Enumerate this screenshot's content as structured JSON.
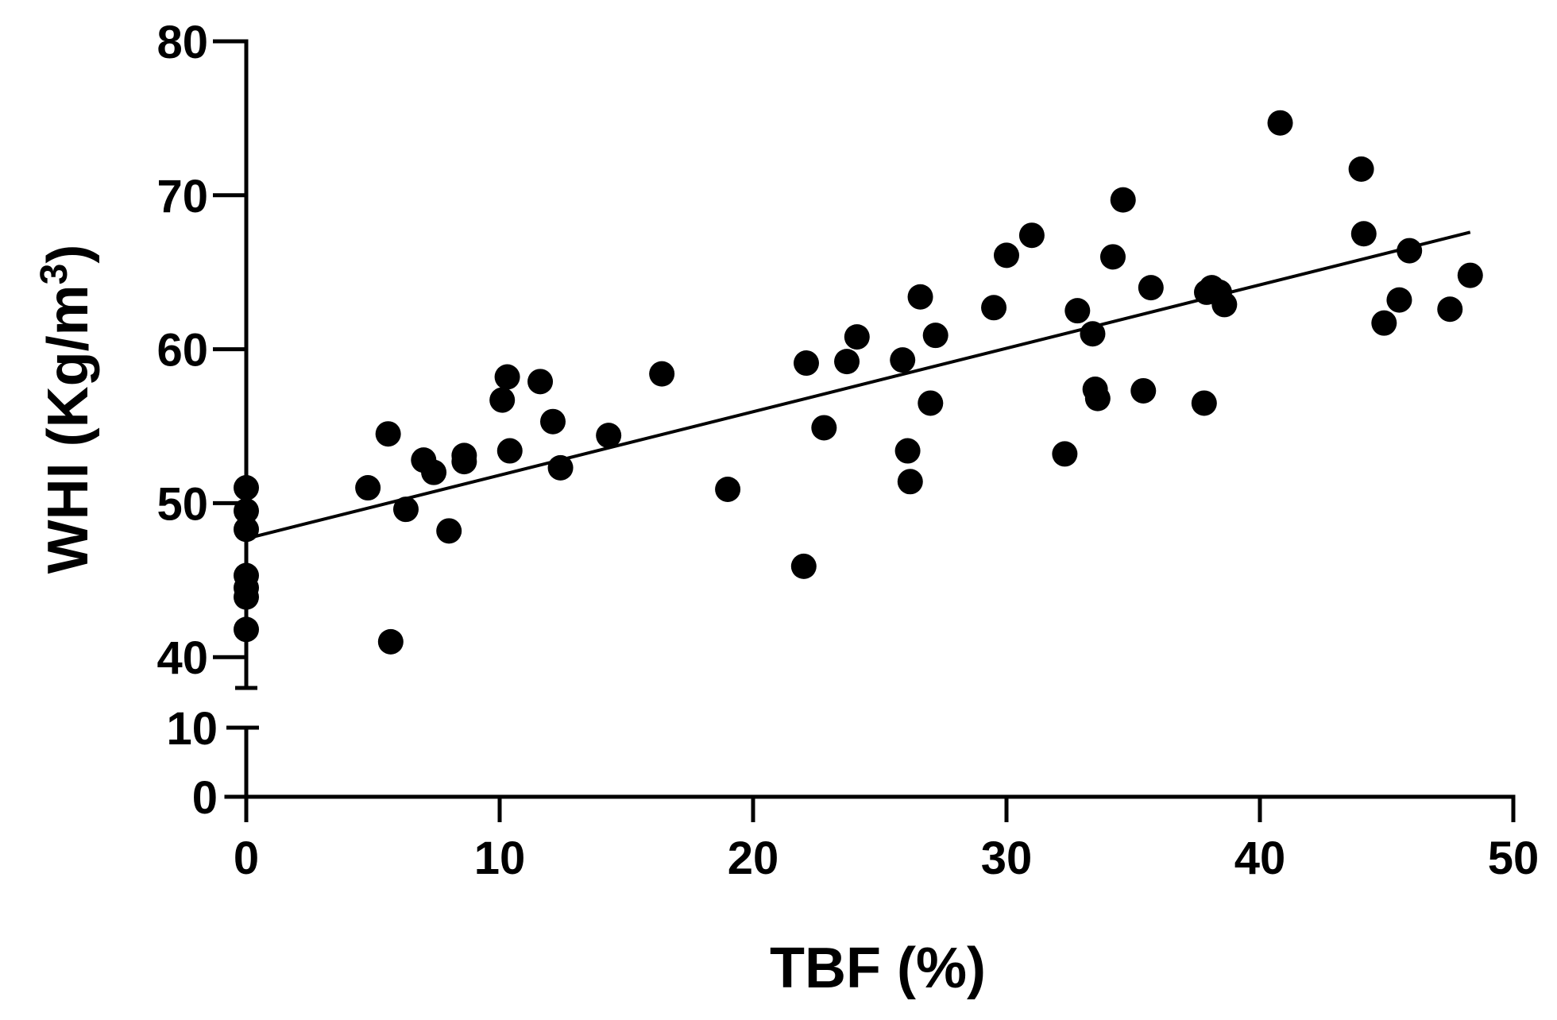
{
  "chart_data": {
    "type": "scatter",
    "xlabel": "TBF (%)",
    "ylabel": "WHI (Kg/m",
    "ylabel_superscript": "3",
    "ylabel_suffix": ")",
    "xlim": [
      0,
      50
    ],
    "x_ticks": [
      0,
      10,
      20,
      30,
      40,
      50
    ],
    "ylim_upper": [
      38,
      80
    ],
    "ylim_lower": [
      0,
      10
    ],
    "y_break": true,
    "y_ticks_upper": [
      40,
      50,
      60,
      70,
      80
    ],
    "y_ticks_lower": [
      0,
      10
    ],
    "grid": false,
    "legend": "none",
    "marker_color": "#000000",
    "points": [
      {
        "x": 0,
        "y": 51.0
      },
      {
        "x": 0,
        "y": 49.5
      },
      {
        "x": 0,
        "y": 48.3
      },
      {
        "x": 0,
        "y": 45.3
      },
      {
        "x": 0,
        "y": 44.5
      },
      {
        "x": 0,
        "y": 43.9
      },
      {
        "x": 0,
        "y": 41.8
      },
      {
        "x": 4.8,
        "y": 51.0
      },
      {
        "x": 5.6,
        "y": 54.5
      },
      {
        "x": 5.7,
        "y": 41.0
      },
      {
        "x": 6.3,
        "y": 49.6
      },
      {
        "x": 7.0,
        "y": 52.8
      },
      {
        "x": 7.4,
        "y": 52.0
      },
      {
        "x": 8.0,
        "y": 48.2
      },
      {
        "x": 8.6,
        "y": 53.1
      },
      {
        "x": 8.6,
        "y": 52.7
      },
      {
        "x": 10.1,
        "y": 56.7
      },
      {
        "x": 10.3,
        "y": 58.2
      },
      {
        "x": 10.4,
        "y": 53.4
      },
      {
        "x": 11.6,
        "y": 57.9
      },
      {
        "x": 12.1,
        "y": 55.3
      },
      {
        "x": 12.4,
        "y": 52.3
      },
      {
        "x": 14.3,
        "y": 54.4
      },
      {
        "x": 16.4,
        "y": 58.4
      },
      {
        "x": 19.0,
        "y": 50.9
      },
      {
        "x": 22.0,
        "y": 45.9
      },
      {
        "x": 22.1,
        "y": 59.1
      },
      {
        "x": 22.8,
        "y": 54.9
      },
      {
        "x": 23.7,
        "y": 59.2
      },
      {
        "x": 24.1,
        "y": 60.8
      },
      {
        "x": 25.9,
        "y": 59.3
      },
      {
        "x": 26.1,
        "y": 53.4
      },
      {
        "x": 26.2,
        "y": 51.4
      },
      {
        "x": 26.6,
        "y": 63.4
      },
      {
        "x": 27.0,
        "y": 56.5
      },
      {
        "x": 27.2,
        "y": 60.9
      },
      {
        "x": 29.5,
        "y": 62.7
      },
      {
        "x": 30.0,
        "y": 66.1
      },
      {
        "x": 31.0,
        "y": 67.4
      },
      {
        "x": 32.3,
        "y": 53.2
      },
      {
        "x": 32.8,
        "y": 62.5
      },
      {
        "x": 33.4,
        "y": 61.0
      },
      {
        "x": 33.5,
        "y": 57.4
      },
      {
        "x": 33.6,
        "y": 56.8
      },
      {
        "x": 34.2,
        "y": 66.0
      },
      {
        "x": 34.6,
        "y": 69.7
      },
      {
        "x": 35.4,
        "y": 57.3
      },
      {
        "x": 35.7,
        "y": 64.0
      },
      {
        "x": 37.8,
        "y": 56.5
      },
      {
        "x": 37.9,
        "y": 63.7
      },
      {
        "x": 38.1,
        "y": 64.0
      },
      {
        "x": 38.4,
        "y": 63.7
      },
      {
        "x": 38.6,
        "y": 62.9
      },
      {
        "x": 40.8,
        "y": 74.7
      },
      {
        "x": 44.0,
        "y": 71.7
      },
      {
        "x": 44.1,
        "y": 67.5
      },
      {
        "x": 44.9,
        "y": 61.7
      },
      {
        "x": 45.5,
        "y": 63.2
      },
      {
        "x": 45.9,
        "y": 66.4
      },
      {
        "x": 47.5,
        "y": 62.6
      },
      {
        "x": 48.3,
        "y": 64.8
      }
    ],
    "trend_line": {
      "x": [
        0,
        48.3
      ],
      "y": [
        47.7,
        67.6
      ]
    }
  }
}
